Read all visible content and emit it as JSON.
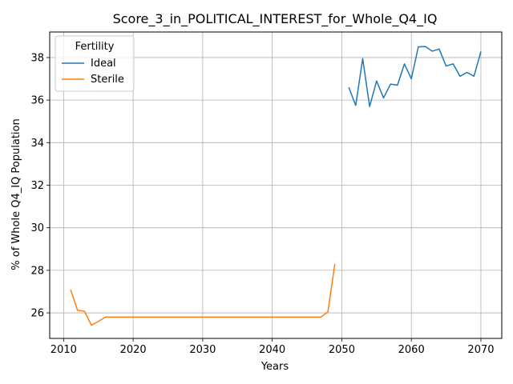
{
  "chart_data": {
    "type": "line",
    "title": "Score_3_in_POLITICAL_INTEREST_for_Whole_Q4_IQ",
    "xlabel": "Years",
    "ylabel": "% of Whole Q4_IQ Population",
    "xlim": [
      2008,
      2073
    ],
    "ylim": [
      24.8,
      39.2
    ],
    "xticks": [
      2010,
      2020,
      2030,
      2040,
      2050,
      2060,
      2070
    ],
    "yticks": [
      26,
      28,
      30,
      32,
      34,
      36,
      38
    ],
    "grid": true,
    "legend": {
      "title": "Fertility",
      "position": "top-left"
    },
    "series": [
      {
        "name": "Ideal",
        "color": "#1f77b4",
        "x": [
          2051,
          2052,
          2053,
          2054,
          2055,
          2056,
          2057,
          2058,
          2059,
          2060,
          2061,
          2062,
          2063,
          2064,
          2065,
          2066,
          2067,
          2068,
          2069,
          2070
        ],
        "y": [
          36.6,
          35.75,
          37.95,
          35.7,
          36.9,
          36.1,
          36.75,
          36.7,
          37.7,
          37.0,
          38.5,
          38.52,
          38.3,
          38.4,
          37.6,
          37.7,
          37.12,
          37.3,
          37.12,
          38.28
        ]
      },
      {
        "name": "Sterile",
        "color": "#ff7f0e",
        "x": [
          2011,
          2012,
          2013,
          2014,
          2015,
          2016,
          2017,
          2018,
          2019,
          2020,
          2021,
          2022,
          2023,
          2024,
          2025,
          2026,
          2027,
          2028,
          2029,
          2030,
          2031,
          2032,
          2033,
          2034,
          2035,
          2036,
          2037,
          2038,
          2039,
          2040,
          2041,
          2042,
          2043,
          2044,
          2045,
          2046,
          2047,
          2048,
          2049
        ],
        "y": [
          27.1,
          26.12,
          26.08,
          25.42,
          25.6,
          25.8,
          25.8,
          25.8,
          25.8,
          25.8,
          25.8,
          25.8,
          25.8,
          25.8,
          25.8,
          25.8,
          25.8,
          25.8,
          25.8,
          25.8,
          25.8,
          25.8,
          25.8,
          25.8,
          25.8,
          25.8,
          25.8,
          25.8,
          25.8,
          25.8,
          25.8,
          25.8,
          25.8,
          25.8,
          25.8,
          25.8,
          25.8,
          26.05,
          28.3
        ]
      }
    ]
  }
}
